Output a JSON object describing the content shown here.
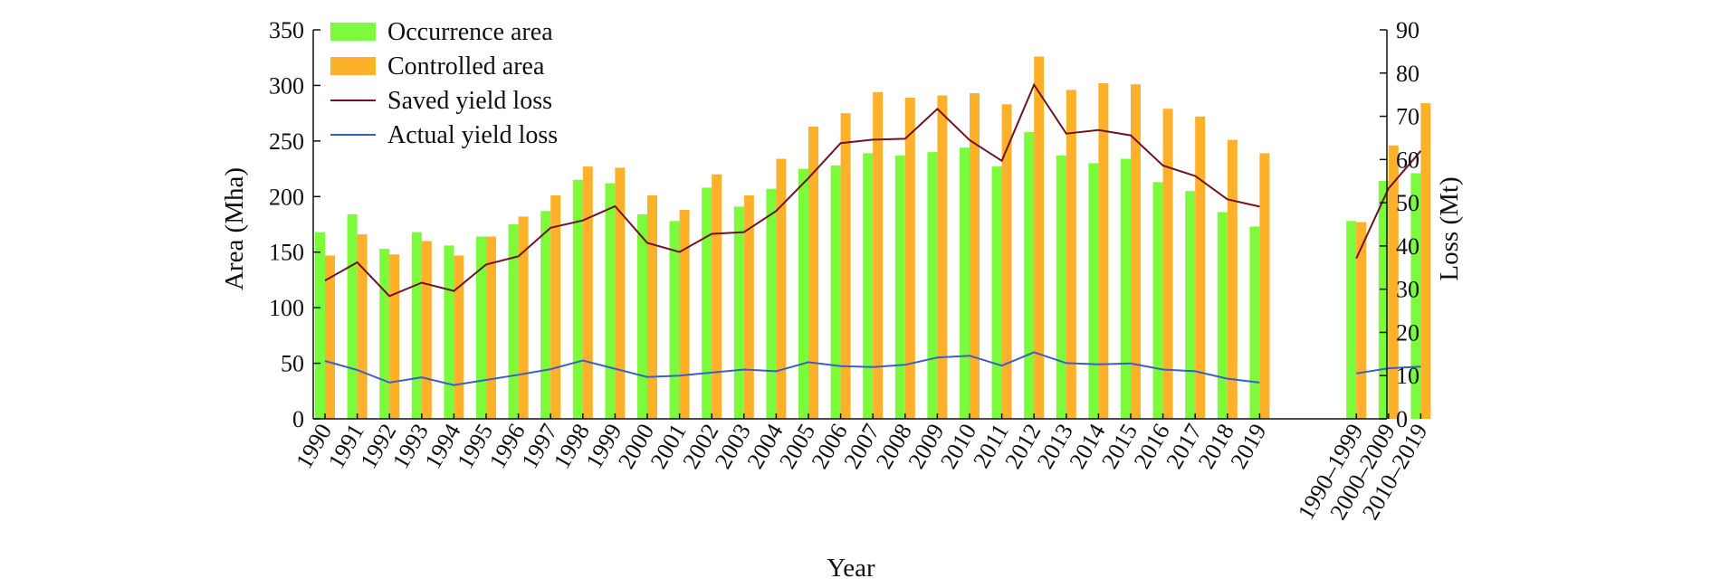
{
  "chart_data": {
    "type": "bar",
    "title": "",
    "xlabel": "Year",
    "ylabel_left": "Area (Mha)",
    "ylabel_right": "Loss (Mt)",
    "ylim_left": [
      0,
      350
    ],
    "ylim_right": [
      0,
      90
    ],
    "yticks_left": [
      "0",
      "50",
      "100",
      "150",
      "200",
      "250",
      "300",
      "350"
    ],
    "yticks_right": [
      "0",
      "10",
      "20",
      "30",
      "40",
      "50",
      "60",
      "70",
      "80",
      "90"
    ],
    "grid": false,
    "legend_position": "top-left",
    "categories": [
      "1990",
      "1991",
      "1992",
      "1993",
      "1994",
      "1995",
      "1996",
      "1997",
      "1998",
      "1999",
      "2000",
      "2001",
      "2002",
      "2003",
      "2004",
      "2005",
      "2006",
      "2007",
      "2008",
      "2009",
      "2010",
      "2011",
      "2012",
      "2013",
      "2014",
      "2015",
      "2016",
      "2017",
      "2018",
      "2019",
      "1990–1999",
      "2000–2009",
      "2010–2019"
    ],
    "series": [
      {
        "name": "Occurrence area",
        "type": "bar",
        "axis": "left",
        "color": "#7dfa3c",
        "values": [
          168,
          184,
          153,
          168,
          156,
          164,
          175,
          187,
          215,
          212,
          184,
          178,
          208,
          191,
          207,
          225,
          228,
          239,
          237,
          240,
          244,
          227,
          258,
          237,
          230,
          234,
          213,
          205,
          186,
          173,
          178,
          214,
          221
        ]
      },
      {
        "name": "Controlled area",
        "type": "bar",
        "axis": "left",
        "color": "#fdb12a",
        "values": [
          147,
          166,
          148,
          160,
          147,
          164,
          182,
          201,
          227,
          226,
          201,
          188,
          220,
          201,
          234,
          263,
          275,
          294,
          289,
          291,
          293,
          283,
          326,
          296,
          302,
          301,
          279,
          272,
          251,
          239,
          177,
          246,
          284
        ]
      },
      {
        "name": "Saved yield loss",
        "type": "line",
        "axis": "right",
        "color": "#6e1422",
        "values": [
          32.0,
          36.2,
          28.4,
          31.5,
          29.6,
          35.7,
          37.6,
          44.2,
          45.9,
          49.2,
          40.7,
          38.6,
          42.8,
          43.2,
          48.1,
          55.7,
          63.8,
          64.6,
          64.8,
          71.7,
          64.5,
          59.7,
          77.3,
          66.0,
          66.8,
          65.6,
          58.6,
          56.2,
          50.8,
          49.1,
          37.1,
          53.3,
          62.0
        ]
      },
      {
        "name": "Actual yield loss",
        "type": "line",
        "axis": "right",
        "color": "#3c5fc4",
        "values": [
          13.4,
          11.3,
          8.4,
          9.6,
          7.8,
          9.0,
          10.2,
          11.5,
          13.5,
          11.6,
          9.7,
          10.0,
          10.7,
          11.4,
          11.0,
          13.1,
          12.2,
          12.0,
          12.5,
          14.2,
          14.6,
          12.3,
          15.4,
          12.9,
          12.6,
          12.8,
          11.4,
          11.0,
          9.3,
          8.4,
          10.5,
          11.7,
          12.1
        ]
      }
    ]
  }
}
